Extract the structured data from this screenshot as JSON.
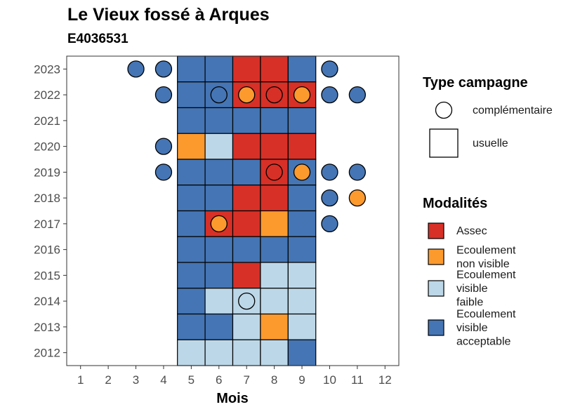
{
  "title": "Le Vieux fossé à Arques",
  "subtitle": "E4036531",
  "colors": {
    "Assec": "#d73027",
    "Ecoulement non visible": "#fd9a2e",
    "Ecoulement visible faible": "#bcd7e8",
    "Ecoulement visible acceptable": "#4575b4"
  },
  "chart_data": {
    "type": "heatmap",
    "xlabel": "Mois",
    "ylabel": "",
    "x_ticks": [
      1,
      2,
      3,
      4,
      5,
      6,
      7,
      8,
      9,
      10,
      11,
      12
    ],
    "y_ticks": [
      2012,
      2013,
      2014,
      2015,
      2016,
      2017,
      2018,
      2019,
      2020,
      2021,
      2022,
      2023
    ],
    "xlim": [
      0.5,
      12.5
    ],
    "ylim": [
      2011.5,
      2023.5
    ],
    "grid": false,
    "legend_position": "right",
    "legend_shape": {
      "title": "Type campagne",
      "entries": [
        {
          "label": "complémentaire",
          "shape": "circle"
        },
        {
          "label": "usuelle",
          "shape": "square"
        }
      ]
    },
    "legend_fill": {
      "title": "Modalités",
      "entries": [
        {
          "key": "Assec",
          "lines": [
            "Assec"
          ]
        },
        {
          "key": "Ecoulement non visible",
          "lines": [
            "Ecoulement",
            "non visible"
          ]
        },
        {
          "key": "Ecoulement visible faible",
          "lines": [
            "Ecoulement",
            "visible",
            "faible"
          ]
        },
        {
          "key": "Ecoulement visible acceptable",
          "lines": [
            "Ecoulement",
            "visible",
            "acceptable"
          ]
        }
      ]
    },
    "usuelle": [
      {
        "year": 2023,
        "months": {
          "5": "Ecoulement visible acceptable",
          "6": "Ecoulement visible acceptable",
          "7": "Assec",
          "8": "Assec",
          "9": "Ecoulement visible acceptable"
        }
      },
      {
        "year": 2022,
        "months": {
          "5": "Ecoulement visible acceptable",
          "6": "Ecoulement visible acceptable",
          "7": "Assec",
          "8": "Assec",
          "9": "Assec"
        }
      },
      {
        "year": 2021,
        "months": {
          "5": "Ecoulement visible acceptable",
          "6": "Ecoulement visible acceptable",
          "7": "Ecoulement visible acceptable",
          "8": "Ecoulement visible acceptable",
          "9": "Ecoulement visible acceptable"
        }
      },
      {
        "year": 2020,
        "months": {
          "5": "Ecoulement non visible",
          "6": "Ecoulement visible faible",
          "7": "Assec",
          "8": "Assec",
          "9": "Assec"
        }
      },
      {
        "year": 2019,
        "months": {
          "5": "Ecoulement visible acceptable",
          "6": "Ecoulement visible acceptable",
          "7": "Ecoulement visible acceptable",
          "8": "Assec",
          "9": "Ecoulement visible acceptable"
        }
      },
      {
        "year": 2018,
        "months": {
          "5": "Ecoulement visible acceptable",
          "6": "Ecoulement visible acceptable",
          "7": "Assec",
          "8": "Assec",
          "9": "Ecoulement visible acceptable"
        }
      },
      {
        "year": 2017,
        "months": {
          "5": "Ecoulement visible acceptable",
          "6": "Assec",
          "7": "Assec",
          "8": "Ecoulement non visible",
          "9": "Ecoulement visible acceptable"
        }
      },
      {
        "year": 2016,
        "months": {
          "5": "Ecoulement visible acceptable",
          "6": "Ecoulement visible acceptable",
          "7": "Ecoulement visible acceptable",
          "8": "Ecoulement visible acceptable",
          "9": "Ecoulement visible acceptable"
        }
      },
      {
        "year": 2015,
        "months": {
          "5": "Ecoulement visible acceptable",
          "6": "Ecoulement visible acceptable",
          "7": "Assec",
          "8": "Ecoulement visible faible",
          "9": "Ecoulement visible faible"
        }
      },
      {
        "year": 2014,
        "months": {
          "5": "Ecoulement visible acceptable",
          "6": "Ecoulement visible faible",
          "7": "Ecoulement visible faible",
          "8": "Ecoulement visible faible",
          "9": "Ecoulement visible faible"
        }
      },
      {
        "year": 2013,
        "months": {
          "5": "Ecoulement visible acceptable",
          "6": "Ecoulement visible acceptable",
          "7": "Ecoulement visible faible",
          "8": "Ecoulement non visible",
          "9": "Ecoulement visible faible"
        }
      },
      {
        "year": 2012,
        "months": {
          "5": "Ecoulement visible faible",
          "6": "Ecoulement visible faible",
          "7": "Ecoulement visible faible",
          "8": "Ecoulement visible faible",
          "9": "Ecoulement visible acceptable"
        }
      }
    ],
    "complementaire": [
      {
        "year": 2023,
        "month": 3,
        "modalite": "Ecoulement visible acceptable"
      },
      {
        "year": 2023,
        "month": 4,
        "modalite": "Ecoulement visible acceptable"
      },
      {
        "year": 2023,
        "month": 10,
        "modalite": "Ecoulement visible acceptable"
      },
      {
        "year": 2022,
        "month": 4,
        "modalite": "Ecoulement visible acceptable"
      },
      {
        "year": 2022,
        "month": 6,
        "modalite": "Ecoulement visible acceptable"
      },
      {
        "year": 2022,
        "month": 7,
        "modalite": "Ecoulement non visible"
      },
      {
        "year": 2022,
        "month": 8,
        "modalite": "Assec"
      },
      {
        "year": 2022,
        "month": 9,
        "modalite": "Ecoulement non visible"
      },
      {
        "year": 2022,
        "month": 10,
        "modalite": "Ecoulement visible acceptable"
      },
      {
        "year": 2022,
        "month": 11,
        "modalite": "Ecoulement visible acceptable"
      },
      {
        "year": 2020,
        "month": 4,
        "modalite": "Ecoulement visible acceptable"
      },
      {
        "year": 2019,
        "month": 4,
        "modalite": "Ecoulement visible acceptable"
      },
      {
        "year": 2019,
        "month": 8,
        "modalite": "Assec"
      },
      {
        "year": 2019,
        "month": 9,
        "modalite": "Ecoulement non visible"
      },
      {
        "year": 2019,
        "month": 10,
        "modalite": "Ecoulement visible acceptable"
      },
      {
        "year": 2019,
        "month": 11,
        "modalite": "Ecoulement visible acceptable"
      },
      {
        "year": 2018,
        "month": 10,
        "modalite": "Ecoulement visible acceptable"
      },
      {
        "year": 2018,
        "month": 11,
        "modalite": "Ecoulement non visible"
      },
      {
        "year": 2017,
        "month": 6,
        "modalite": "Ecoulement non visible"
      },
      {
        "year": 2017,
        "month": 10,
        "modalite": "Ecoulement visible acceptable"
      },
      {
        "year": 2014,
        "month": 7,
        "modalite": "Ecoulement visible faible"
      }
    ]
  }
}
